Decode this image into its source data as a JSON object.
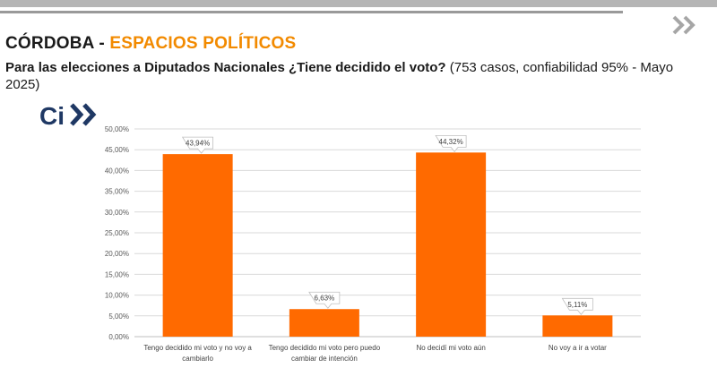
{
  "header": {
    "title_region": "CÓRDOBA - ",
    "title_topic": "ESPACIOS POLÍTICOS",
    "question": "Para las elecciones a Diputados Nacionales ¿Tiene decidido el voto?",
    "details": " (753 casos, confiabilidad 95% - Mayo 2025)",
    "logo_text": "Ci"
  },
  "colors": {
    "bar": "#ff6a00",
    "title_accent": "#f28a00",
    "grid": "#d9d9d9"
  },
  "chart_data": {
    "type": "bar",
    "categories": [
      [
        "Tengo decidido mi voto y no voy a",
        "cambiarlo"
      ],
      [
        "Tengo decidido mi voto pero puedo",
        "cambiar de intención"
      ],
      [
        "No decidí mi voto aún"
      ],
      [
        "No voy a ir a votar"
      ]
    ],
    "values": [
      43.94,
      6.63,
      44.32,
      5.11
    ],
    "value_labels": [
      "43,94%",
      "6,63%",
      "44,32%",
      "5,11%"
    ],
    "y_ticks": [
      "0,00%",
      "5,00%",
      "10,00%",
      "15,00%",
      "20,00%",
      "25,00%",
      "30,00%",
      "35,00%",
      "40,00%",
      "45,00%",
      "50,00%"
    ],
    "ylim": [
      0,
      50
    ],
    "grid": true,
    "legend": "none"
  }
}
